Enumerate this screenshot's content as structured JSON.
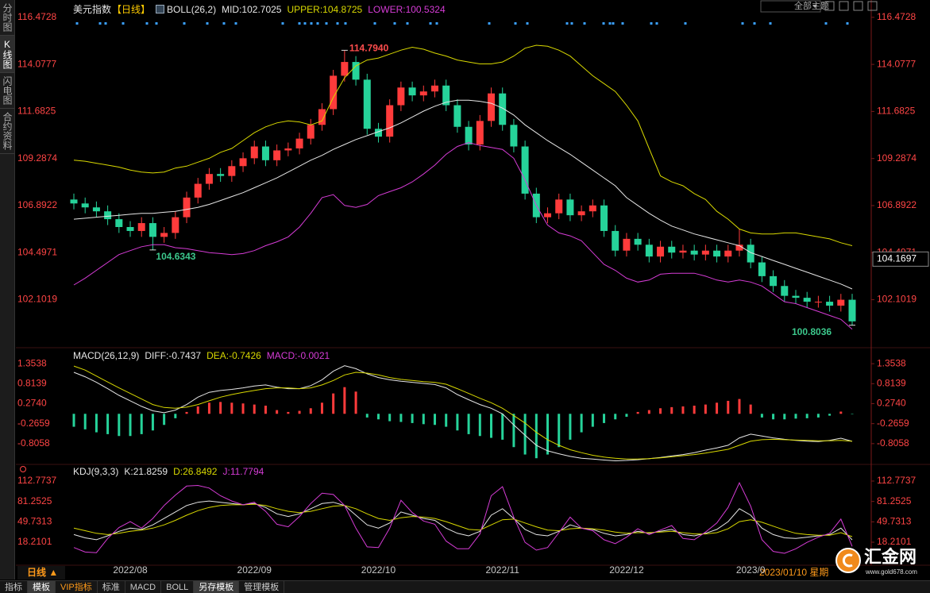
{
  "chart_data": [
    {
      "type": "candlestick",
      "title": "美元指数",
      "period": "【日线】",
      "indicator": "BOLL(26,2)",
      "categories": [
        null,
        null,
        null,
        null,
        null,
        "2022/08",
        null,
        null,
        null,
        null,
        null,
        null,
        null,
        null,
        null,
        null,
        "2022/09",
        null,
        null,
        null,
        null,
        null,
        null,
        null,
        null,
        null,
        null,
        "2022/10",
        null,
        null,
        null,
        null,
        null,
        null,
        null,
        null,
        null,
        null,
        "2022/11",
        null,
        null,
        null,
        null,
        null,
        null,
        null,
        null,
        null,
        null,
        "2022/12",
        null,
        null,
        null,
        null,
        null,
        null,
        null,
        null,
        null,
        null,
        "2023/0",
        null,
        null,
        null,
        null,
        null,
        null,
        null,
        null,
        null
      ],
      "open": [
        107.2,
        107.0,
        106.8,
        106.6,
        106.2,
        105.8,
        105.6,
        106.0,
        105.3,
        105.5,
        106.3,
        107.3,
        108.0,
        108.5,
        108.4,
        108.9,
        109.3,
        109.9,
        109.2,
        109.7,
        109.8,
        110.3,
        111.0,
        111.8,
        113.5,
        114.2,
        113.3,
        110.8,
        110.4,
        112.0,
        112.9,
        112.5,
        112.7,
        113.0,
        112.0,
        110.9,
        110.0,
        111.2,
        112.6,
        111.0,
        109.9,
        107.5,
        106.3,
        106.5,
        107.2,
        106.4,
        106.6,
        106.9,
        105.6,
        104.6,
        105.2,
        104.9,
        104.3,
        104.8,
        104.5,
        104.6,
        104.4,
        104.6,
        104.3,
        104.6,
        104.9,
        104.0,
        103.3,
        102.8,
        102.3,
        102.2,
        102.0,
        102.0,
        101.8,
        102.1
      ],
      "high": [
        107.5,
        107.3,
        107.1,
        106.9,
        106.5,
        106.1,
        106.3,
        106.3,
        105.8,
        106.6,
        107.6,
        108.3,
        108.8,
        108.8,
        109.2,
        109.6,
        110.2,
        110.2,
        110.0,
        110.1,
        110.6,
        111.3,
        112.1,
        113.8,
        114.794,
        114.5,
        113.6,
        111.1,
        112.3,
        113.2,
        113.2,
        113.0,
        113.3,
        113.3,
        112.3,
        111.2,
        111.5,
        112.9,
        112.9,
        111.3,
        110.2,
        107.8,
        106.8,
        107.5,
        107.5,
        106.9,
        107.2,
        107.2,
        105.9,
        105.5,
        105.5,
        105.2,
        105.1,
        105.1,
        104.9,
        104.9,
        104.9,
        104.9,
        104.9,
        105.7,
        105.2,
        104.3,
        103.6,
        103.1,
        102.6,
        102.5,
        102.3,
        102.3,
        102.4,
        102.4
      ],
      "low": [
        106.7,
        106.5,
        106.3,
        105.9,
        105.5,
        105.3,
        105.3,
        104.6343,
        105.0,
        105.2,
        106.0,
        107.0,
        107.7,
        108.1,
        108.1,
        108.6,
        109.0,
        108.9,
        108.9,
        109.4,
        109.5,
        110.0,
        110.7,
        111.5,
        113.2,
        113.0,
        110.5,
        110.1,
        110.1,
        111.7,
        112.2,
        112.2,
        112.4,
        111.7,
        110.6,
        109.7,
        109.7,
        110.9,
        110.7,
        109.6,
        107.2,
        106.0,
        106.0,
        106.2,
        106.1,
        106.1,
        106.3,
        105.3,
        104.3,
        104.3,
        104.6,
        104.0,
        104.0,
        104.2,
        104.2,
        104.1,
        104.1,
        104.0,
        104.0,
        104.3,
        103.7,
        103.0,
        102.5,
        102.0,
        101.9,
        101.7,
        101.7,
        101.5,
        101.5,
        100.8036
      ],
      "close": [
        107.0,
        106.8,
        106.6,
        106.2,
        105.8,
        105.6,
        106.0,
        105.3,
        105.5,
        106.3,
        107.3,
        108.0,
        108.5,
        108.4,
        108.9,
        109.3,
        109.9,
        109.2,
        109.7,
        109.8,
        110.3,
        111.0,
        111.8,
        113.5,
        114.2,
        113.3,
        110.8,
        110.4,
        112.0,
        112.9,
        112.5,
        112.7,
        113.0,
        112.0,
        110.9,
        110.0,
        111.2,
        112.6,
        111.0,
        109.9,
        107.5,
        106.3,
        106.5,
        107.2,
        106.4,
        106.6,
        106.9,
        105.6,
        104.6,
        105.2,
        104.9,
        104.3,
        104.8,
        104.5,
        104.6,
        104.4,
        104.6,
        104.3,
        104.6,
        104.9,
        104.0,
        103.3,
        102.8,
        102.3,
        102.2,
        102.0,
        102.0,
        101.8,
        102.1,
        101.0
      ],
      "up_color": "#ff3b3b",
      "down_color": "#26d39a",
      "series": [
        {
          "name": "MID:",
          "value": 102.7025,
          "color": "#e6e6e6",
          "values": [
            106.2,
            106.25,
            106.3,
            106.35,
            106.4,
            106.45,
            106.5,
            106.5,
            106.55,
            106.6,
            106.7,
            106.8,
            106.95,
            107.15,
            107.35,
            107.55,
            107.8,
            108.05,
            108.3,
            108.6,
            108.9,
            109.2,
            109.45,
            109.75,
            110.0,
            110.25,
            110.45,
            110.65,
            110.85,
            111.1,
            111.4,
            111.7,
            111.95,
            112.15,
            112.25,
            112.25,
            112.2,
            112.1,
            111.85,
            111.5,
            111.0,
            110.6,
            110.2,
            109.85,
            109.5,
            109.1,
            108.7,
            108.3,
            107.9,
            107.3,
            106.9,
            106.5,
            106.15,
            105.85,
            105.65,
            105.45,
            105.3,
            105.15,
            105.0,
            104.85,
            104.5,
            104.3,
            104.1,
            103.9,
            103.7,
            103.5,
            103.3,
            103.1,
            102.9,
            102.65
          ]
        },
        {
          "name": "UPPER:",
          "value": 104.8725,
          "color": "#d8d800",
          "values": [
            109.2,
            109.15,
            109.05,
            108.95,
            108.85,
            108.7,
            108.6,
            108.55,
            108.6,
            108.8,
            108.9,
            109.1,
            109.3,
            109.6,
            109.8,
            110.2,
            110.6,
            110.9,
            111.1,
            111.2,
            111.15,
            111.0,
            111.2,
            112.4,
            113.4,
            114.0,
            114.3,
            114.4,
            114.6,
            114.8,
            114.95,
            114.85,
            114.65,
            114.5,
            114.3,
            114.2,
            114.1,
            114.1,
            114.2,
            114.5,
            114.9,
            115.05,
            115.0,
            114.8,
            114.5,
            114.0,
            113.5,
            113.1,
            112.7,
            112.0,
            111.2,
            109.8,
            108.4,
            108.1,
            107.9,
            107.5,
            107.2,
            106.6,
            106.2,
            105.7,
            105.5,
            105.45,
            105.45,
            105.5,
            105.5,
            105.4,
            105.3,
            105.2,
            105.0,
            104.85
          ]
        },
        {
          "name": "LOWER:",
          "value": 100.5324,
          "color": "#d63cd6",
          "values": [
            102.85,
            103.2,
            103.6,
            104.0,
            104.4,
            104.6,
            104.8,
            104.9,
            104.9,
            104.75,
            104.7,
            104.6,
            104.5,
            104.45,
            104.4,
            104.45,
            104.6,
            104.85,
            105.05,
            105.3,
            105.8,
            106.5,
            107.3,
            107.45,
            106.9,
            106.8,
            106.95,
            107.4,
            107.6,
            107.8,
            108.1,
            108.5,
            108.95,
            109.5,
            109.9,
            110.1,
            109.95,
            109.85,
            109.75,
            109.3,
            108.2,
            106.9,
            105.9,
            105.5,
            105.35,
            105.1,
            104.5,
            103.9,
            103.6,
            103.2,
            103.0,
            103.1,
            103.4,
            103.45,
            103.45,
            103.45,
            103.3,
            103.1,
            103.0,
            103.1,
            103.0,
            102.8,
            102.4,
            102.0,
            101.9,
            101.7,
            101.5,
            101.3,
            101.1,
            100.6
          ]
        }
      ],
      "annotations": [
        {
          "value": 114.794,
          "label": "114.7940",
          "color": "#ff4d4d"
        },
        {
          "value": 104.6343,
          "label": "104.6343",
          "color": "#3cc88c"
        },
        {
          "value": 100.8036,
          "label": "100.8036",
          "color": "#3cc88c"
        }
      ],
      "cursor_value": 104.1697,
      "ylim": [
        99.7,
        116.95
      ],
      "yticks": [
        116.4728,
        114.0777,
        111.6825,
        109.2874,
        106.8922,
        104.4971,
        102.1019
      ]
    },
    {
      "type": "macd",
      "title": "MACD(26,12,9)",
      "series": [
        {
          "name": "DIFF:",
          "value": -0.7437,
          "color": "#e6e6e6",
          "values": [
            1.12,
            1.0,
            0.85,
            0.68,
            0.5,
            0.35,
            0.2,
            0.08,
            0.03,
            0.1,
            0.25,
            0.45,
            0.58,
            0.63,
            0.66,
            0.7,
            0.75,
            0.78,
            0.72,
            0.68,
            0.68,
            0.76,
            0.92,
            1.15,
            1.3,
            1.22,
            1.08,
            0.98,
            0.92,
            0.88,
            0.85,
            0.82,
            0.79,
            0.7,
            0.52,
            0.38,
            0.25,
            0.15,
            0.0,
            -0.3,
            -0.58,
            -0.85,
            -1.0,
            -1.08,
            -1.15,
            -1.2,
            -1.22,
            -1.25,
            -1.27,
            -1.26,
            -1.24,
            -1.21,
            -1.18,
            -1.14,
            -1.1,
            -1.05,
            -0.98,
            -0.92,
            -0.85,
            -0.65,
            -0.55,
            -0.6,
            -0.65,
            -0.69,
            -0.72,
            -0.74,
            -0.75,
            -0.72,
            -0.66,
            -0.7437
          ]
        },
        {
          "name": "DEA:",
          "value": -0.7426,
          "color": "#d8d800",
          "values": [
            1.29,
            1.18,
            1.02,
            0.86,
            0.7,
            0.55,
            0.4,
            0.25,
            0.17,
            0.15,
            0.18,
            0.25,
            0.35,
            0.45,
            0.52,
            0.58,
            0.63,
            0.68,
            0.7,
            0.7,
            0.68,
            0.7,
            0.78,
            0.9,
            1.05,
            1.12,
            1.1,
            1.05,
            0.98,
            0.93,
            0.9,
            0.87,
            0.85,
            0.8,
            0.68,
            0.55,
            0.42,
            0.3,
            0.15,
            -0.05,
            -0.25,
            -0.5,
            -0.7,
            -0.85,
            -0.97,
            -1.05,
            -1.12,
            -1.17,
            -1.2,
            -1.22,
            -1.22,
            -1.21,
            -1.19,
            -1.16,
            -1.13,
            -1.1,
            -1.06,
            -1.01,
            -0.96,
            -0.85,
            -0.74,
            -0.7,
            -0.69,
            -0.7,
            -0.71,
            -0.72,
            -0.73,
            -0.73,
            -0.72,
            -0.7426
          ]
        },
        {
          "name": "MACD:",
          "value": -0.0021,
          "color": "#d63cd6",
          "kind": "bar",
          "up_color": "#ff3b3b",
          "down_color": "#26d39a",
          "values": [
            -0.35,
            -0.42,
            -0.5,
            -0.55,
            -0.6,
            -0.6,
            -0.55,
            -0.45,
            -0.3,
            -0.12,
            0.05,
            0.2,
            0.3,
            0.32,
            0.3,
            0.28,
            0.25,
            0.22,
            0.1,
            0.05,
            0.08,
            0.15,
            0.3,
            0.55,
            0.72,
            0.6,
            -0.1,
            -0.15,
            -0.2,
            -0.22,
            -0.25,
            -0.28,
            -0.3,
            -0.35,
            -0.45,
            -0.55,
            -0.6,
            -0.65,
            -0.7,
            -0.9,
            -1.1,
            -1.2,
            -1.1,
            -0.9,
            -0.7,
            -0.5,
            -0.35,
            -0.25,
            -0.15,
            -0.08,
            0.05,
            0.1,
            0.15,
            0.18,
            0.2,
            0.22,
            0.25,
            0.3,
            0.35,
            0.4,
            0.25,
            -0.1,
            -0.15,
            -0.15,
            -0.13,
            -0.12,
            -0.1,
            -0.05,
            0.06,
            -0.0021
          ]
        }
      ],
      "ylim": [
        -1.324,
        1.7
      ],
      "yticks": [
        1.3538,
        0.8139,
        {
          "value": 0.274,
          "label": "0.2740"
        },
        -0.2659,
        -0.8058
      ]
    },
    {
      "type": "line",
      "title": "KDJ(9,3,3)",
      "series": [
        {
          "name": "K:",
          "value": 21.8259,
          "color": "#e6e6e6",
          "values": [
            30,
            25,
            22,
            28,
            35,
            40,
            38,
            45,
            55,
            65,
            75,
            80,
            82,
            80,
            78,
            76,
            78,
            72,
            62,
            58,
            62,
            70,
            78,
            80,
            75,
            60,
            45,
            40,
            48,
            65,
            60,
            55,
            52,
            40,
            32,
            28,
            35,
            60,
            70,
            55,
            38,
            30,
            28,
            35,
            45,
            40,
            38,
            32,
            28,
            30,
            35,
            32,
            35,
            38,
            30,
            28,
            32,
            38,
            50,
            70,
            60,
            40,
            30,
            25,
            24,
            26,
            28,
            30,
            40,
            21.8259
          ]
        },
        {
          "name": "D:",
          "value": 26.8492,
          "color": "#d8d800",
          "values": [
            40,
            36,
            32,
            30,
            32,
            35,
            37,
            40,
            45,
            52,
            60,
            67,
            72,
            75,
            76,
            76,
            77,
            75,
            70,
            66,
            64,
            66,
            70,
            74,
            75,
            70,
            62,
            55,
            52,
            56,
            58,
            57,
            55,
            50,
            44,
            38,
            37,
            45,
            53,
            54,
            48,
            42,
            37,
            36,
            39,
            40,
            39,
            37,
            34,
            32,
            33,
            33,
            34,
            35,
            33,
            31,
            31,
            33,
            39,
            50,
            53,
            49,
            43,
            37,
            32,
            30,
            29,
            29,
            33,
            26.8492
          ]
        },
        {
          "name": "J:",
          "value": 11.7794,
          "color": "#d63cd6",
          "values": [
            10,
            3,
            2,
            24,
            41,
            50,
            40,
            55,
            75,
            91,
            105,
            106,
            102,
            90,
            82,
            76,
            80,
            66,
            46,
            42,
            58,
            78,
            94,
            92,
            75,
            40,
            11,
            10,
            40,
            83,
            64,
            51,
            46,
            20,
            8,
            8,
            31,
            90,
            104,
            57,
            18,
            6,
            10,
            33,
            57,
            40,
            36,
            22,
            16,
            26,
            39,
            30,
            37,
            44,
            24,
            22,
            34,
            48,
            72,
            110,
            74,
            22,
            4,
            1,
            8,
            18,
            26,
            32,
            54,
            11.7794
          ]
        }
      ],
      "ylim": [
        -17.36,
        134.85
      ],
      "yticks": [
        112.7737,
        81.2525,
        49.7313,
        18.2101
      ]
    }
  ],
  "sidebar": [
    "分时图",
    "K线图",
    "闪电图",
    "合约资料"
  ],
  "theme_button": "全部主题",
  "period_button": "日线 ▲",
  "cursor_date": "2023/01/10 星期",
  "toolbar": [
    "指标",
    "模板",
    "VIP指标",
    "标准",
    "MACD",
    "BOLL",
    "另存模板",
    "管理模板"
  ],
  "logo": {
    "name": "汇金网",
    "url": "www.gold678.com"
  }
}
